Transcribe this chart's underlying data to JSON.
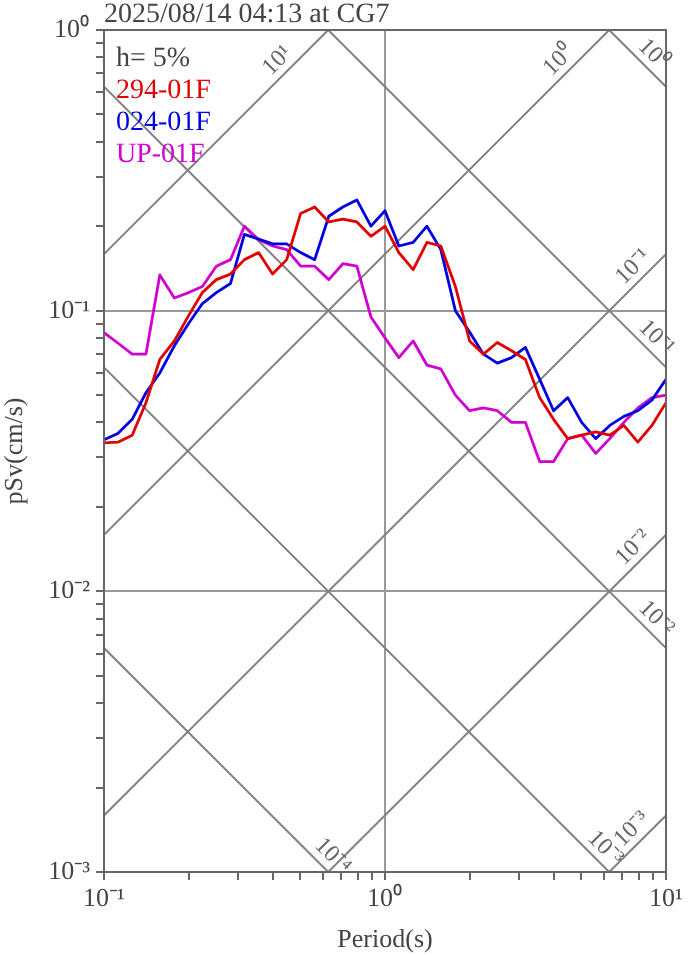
{
  "chart_data": {
    "type": "line",
    "title": "2025/08/14 04:13 at CG7",
    "xlabel": "Period(s)",
    "ylabel": "pSv(cm/s)",
    "log": "xy",
    "grid": true,
    "legend": "top left",
    "xlim": [
      0.1,
      10
    ],
    "ylim": [
      0.001,
      1
    ],
    "xticks": [
      {
        "value": 0.1,
        "label": "10⁻¹"
      },
      {
        "value": 0.2,
        "label": null
      },
      {
        "value": 0.3,
        "label": null
      },
      {
        "value": 0.4,
        "label": null
      },
      {
        "value": 0.5,
        "label": null
      },
      {
        "value": 0.6,
        "label": null
      },
      {
        "value": 0.7,
        "label": null
      },
      {
        "value": 0.8,
        "label": null
      },
      {
        "value": 0.9,
        "label": null
      },
      {
        "value": 1,
        "label": "10⁰"
      },
      {
        "value": 2,
        "label": null
      },
      {
        "value": 3,
        "label": null
      },
      {
        "value": 4,
        "label": null
      },
      {
        "value": 5,
        "label": null
      },
      {
        "value": 6,
        "label": null
      },
      {
        "value": 7,
        "label": null
      },
      {
        "value": 8,
        "label": null
      },
      {
        "value": 9,
        "label": null
      },
      {
        "value": 10,
        "label": "10¹"
      }
    ],
    "yticks": [
      {
        "value": 0.001,
        "label": "10⁻³"
      },
      {
        "value": 0.002,
        "label": null
      },
      {
        "value": 0.003,
        "label": null
      },
      {
        "value": 0.004,
        "label": null
      },
      {
        "value": 0.005,
        "label": null
      },
      {
        "value": 0.006,
        "label": null
      },
      {
        "value": 0.007,
        "label": null
      },
      {
        "value": 0.008,
        "label": null
      },
      {
        "value": 0.009,
        "label": null
      },
      {
        "value": 0.01,
        "label": "10⁻²"
      },
      {
        "value": 0.02,
        "label": null
      },
      {
        "value": 0.03,
        "label": null
      },
      {
        "value": 0.04,
        "label": null
      },
      {
        "value": 0.05,
        "label": null
      },
      {
        "value": 0.06,
        "label": null
      },
      {
        "value": 0.07,
        "label": null
      },
      {
        "value": 0.08,
        "label": null
      },
      {
        "value": 0.09,
        "label": null
      },
      {
        "value": 0.1,
        "label": "10⁻¹"
      },
      {
        "value": 0.2,
        "label": null
      },
      {
        "value": 0.3,
        "label": null
      },
      {
        "value": 0.4,
        "label": null
      },
      {
        "value": 0.5,
        "label": null
      },
      {
        "value": 0.6,
        "label": null
      },
      {
        "value": 0.7,
        "label": null
      },
      {
        "value": 0.8,
        "label": null
      },
      {
        "value": 0.9,
        "label": null
      },
      {
        "value": 1,
        "label": "10⁰"
      }
    ],
    "x": [
      0.1,
      0.112,
      0.126,
      0.141,
      0.158,
      0.178,
      0.2,
      0.224,
      0.251,
      0.282,
      0.316,
      0.355,
      0.398,
      0.447,
      0.501,
      0.562,
      0.631,
      0.708,
      0.794,
      0.891,
      1,
      1.12,
      1.26,
      1.41,
      1.58,
      1.78,
      2,
      2.24,
      2.51,
      2.82,
      3.16,
      3.55,
      3.98,
      4.47,
      5.01,
      5.62,
      6.31,
      7.08,
      7.94,
      8.91,
      10
    ],
    "series": [
      {
        "name": "294-01F",
        "color": "#e00000",
        "values": [
          0.0338,
          0.034,
          0.036,
          0.047,
          0.067,
          0.078,
          0.096,
          0.116,
          0.129,
          0.135,
          0.152,
          0.161,
          0.135,
          0.152,
          0.222,
          0.234,
          0.207,
          0.212,
          0.207,
          0.184,
          0.2,
          0.161,
          0.14,
          0.175,
          0.17,
          0.122,
          0.078,
          0.07,
          0.077,
          0.072,
          0.067,
          0.049,
          0.041,
          0.035,
          0.036,
          0.037,
          0.036,
          0.039,
          0.034,
          0.039,
          0.047
        ]
      },
      {
        "name": "024-01F",
        "color": "#0000e0",
        "values": [
          0.0347,
          0.0365,
          0.041,
          0.051,
          0.06,
          0.075,
          0.09,
          0.106,
          0.116,
          0.125,
          0.187,
          0.18,
          0.173,
          0.173,
          0.161,
          0.152,
          0.217,
          0.234,
          0.248,
          0.2,
          0.227,
          0.17,
          0.175,
          0.2,
          0.165,
          0.1,
          0.084,
          0.07,
          0.065,
          0.068,
          0.074,
          0.057,
          0.044,
          0.049,
          0.04,
          0.035,
          0.039,
          0.042,
          0.044,
          0.048,
          0.057
        ]
      },
      {
        "name": "UP-01F",
        "color": "#d000d0",
        "values": [
          0.0835,
          0.0767,
          0.07,
          0.07,
          0.134,
          0.111,
          0.116,
          0.122,
          0.144,
          0.152,
          0.2,
          0.179,
          0.17,
          0.165,
          0.144,
          0.144,
          0.129,
          0.147,
          0.144,
          0.095,
          0.08,
          0.068,
          0.078,
          0.064,
          0.062,
          0.05,
          0.044,
          0.045,
          0.044,
          0.04,
          0.04,
          0.029,
          0.029,
          0.035,
          0.036,
          0.031,
          0.035,
          0.04,
          0.045,
          0.049,
          0.05
        ]
      },
      {
        "type": "line",
        "color": "#808080",
        "x": [
          6.28,
          10
        ],
        "values": [
          1,
          0.628
        ]
      },
      {
        "type": "line",
        "color": "#808080",
        "x": [
          0.628,
          10
        ],
        "values": [
          1,
          0.0628
        ]
      },
      {
        "type": "line",
        "color": "#808080",
        "x": [
          0.1,
          10
        ],
        "values": [
          0.628,
          0.00628
        ]
      },
      {
        "type": "line",
        "color": "#808080",
        "x": [
          0.1,
          6.28
        ],
        "values": [
          0.0628,
          0.001
        ]
      },
      {
        "type": "line",
        "color": "#808080",
        "x": [
          0.1,
          0.628
        ],
        "values": [
          0.00628,
          0.001
        ]
      },
      {
        "type": "line",
        "color": "#808080",
        "x": [
          0.1,
          0.628
        ],
        "values": [
          0.159,
          1
        ]
      },
      {
        "type": "line",
        "color": "#808080",
        "x": [
          0.1,
          6.28
        ],
        "values": [
          0.0159,
          1
        ]
      },
      {
        "type": "line",
        "color": "#808080",
        "x": [
          0.1,
          10
        ],
        "values": [
          0.00159,
          0.159
        ]
      },
      {
        "type": "line",
        "color": "#808080",
        "x": [
          0.628,
          10
        ],
        "values": [
          0.001,
          0.0159
        ]
      },
      {
        "type": "line",
        "color": "#808080",
        "x": [
          6.28,
          10
        ],
        "values": [
          0.001,
          0.00159
        ]
      }
    ],
    "annotations": [
      "h= 5%",
      {
        "text": "10¹",
        "x": 0.45,
        "y": 0.717
      },
      {
        "text": "10⁰",
        "x": 4.5,
        "y": 0.717
      },
      {
        "text": "10⁰",
        "x": 8.3,
        "y": 0.757
      },
      {
        "text": "10⁻¹",
        "x": 8.3,
        "y": 0.132
      },
      {
        "text": "10⁻¹",
        "x": 8.5,
        "y": 0.0739
      },
      {
        "text": "10⁻²",
        "x": 8.3,
        "y": 0.0132
      },
      {
        "text": "10⁻²",
        "x": 8.5,
        "y": 0.00739
      },
      {
        "text": "10⁻⁴",
        "x": 0.6,
        "y": 0.00105
      },
      {
        "text": "10⁻³",
        "x": 5.6,
        "y": 0.00112
      },
      {
        "text": "10⁻³",
        "x": 8.2,
        "y": 0.00131
      }
    ]
  }
}
